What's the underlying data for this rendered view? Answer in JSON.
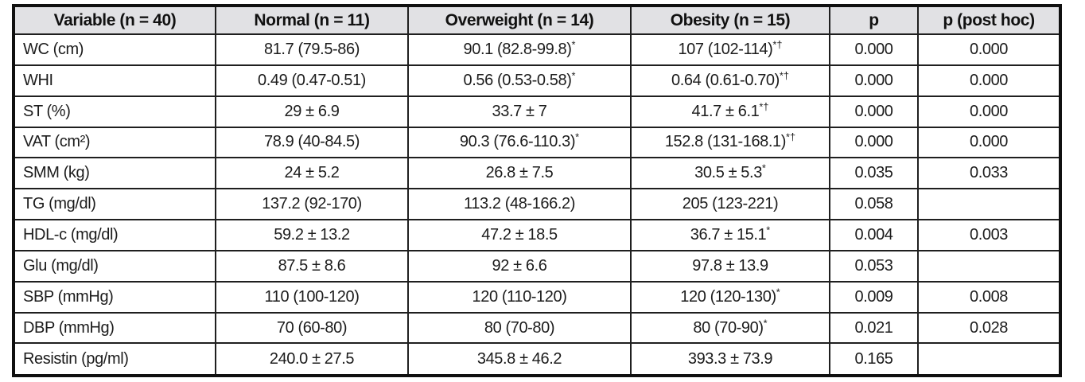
{
  "colors": {
    "header_bg": "#e1e1e4",
    "border": "#1f1f1f",
    "text": "#1c1c1c"
  },
  "table": {
    "headers": [
      "Variable (n = 40)",
      "Normal (n = 11)",
      "Overweight (n = 14)",
      "Obesity (n = 15)",
      "p",
      "p (post hoc)"
    ],
    "rows": [
      {
        "variable": "WC (cm)",
        "normal": {
          "text": "81.7 (79.5-86)",
          "sup": ""
        },
        "overweight": {
          "text": "90.1 (82.8-99.8)",
          "sup": "*"
        },
        "obesity": {
          "text": "107 (102-114)",
          "sup": "*†"
        },
        "p": "0.000",
        "p_post_hoc": "0.000"
      },
      {
        "variable": "WHI",
        "normal": {
          "text": "0.49 (0.47-0.51)",
          "sup": ""
        },
        "overweight": {
          "text": "0.56 (0.53-0.58)",
          "sup": "*"
        },
        "obesity": {
          "text": "0.64 (0.61-0.70)",
          "sup": "*†"
        },
        "p": "0.000",
        "p_post_hoc": "0.000"
      },
      {
        "variable": "ST (%)",
        "normal": {
          "text": "29 ± 6.9",
          "sup": ""
        },
        "overweight": {
          "text": "33.7 ± 7",
          "sup": ""
        },
        "obesity": {
          "text": "41.7 ± 6.1",
          "sup": "*†"
        },
        "p": "0.000",
        "p_post_hoc": "0.000"
      },
      {
        "variable": "VAT (cm²)",
        "normal": {
          "text": "78.9 (40-84.5)",
          "sup": ""
        },
        "overweight": {
          "text": "90.3 (76.6-110.3)",
          "sup": "*"
        },
        "obesity": {
          "text": "152.8 (131-168.1)",
          "sup": "*†"
        },
        "p": "0.000",
        "p_post_hoc": "0.000"
      },
      {
        "variable": "SMM (kg)",
        "normal": {
          "text": "24 ± 5.2",
          "sup": ""
        },
        "overweight": {
          "text": "26.8 ± 7.5",
          "sup": ""
        },
        "obesity": {
          "text": "30.5 ± 5.3",
          "sup": "*"
        },
        "p": "0.035",
        "p_post_hoc": "0.033"
      },
      {
        "variable": "TG (mg/dl)",
        "normal": {
          "text": "137.2 (92-170)",
          "sup": ""
        },
        "overweight": {
          "text": "113.2 (48-166.2)",
          "sup": ""
        },
        "obesity": {
          "text": "205 (123-221)",
          "sup": ""
        },
        "p": "0.058",
        "p_post_hoc": ""
      },
      {
        "variable": "HDL-c (mg/dl)",
        "normal": {
          "text": "59.2 ± 13.2",
          "sup": ""
        },
        "overweight": {
          "text": "47.2 ± 18.5",
          "sup": ""
        },
        "obesity": {
          "text": "36.7 ± 15.1",
          "sup": "*"
        },
        "p": "0.004",
        "p_post_hoc": "0.003"
      },
      {
        "variable": "Glu (mg/dl)",
        "normal": {
          "text": "87.5 ± 8.6",
          "sup": ""
        },
        "overweight": {
          "text": "92 ± 6.6",
          "sup": ""
        },
        "obesity": {
          "text": "97.8 ± 13.9",
          "sup": ""
        },
        "p": "0.053",
        "p_post_hoc": ""
      },
      {
        "variable": "SBP (mmHg)",
        "normal": {
          "text": "110 (100-120)",
          "sup": ""
        },
        "overweight": {
          "text": "120 (110-120)",
          "sup": ""
        },
        "obesity": {
          "text": "120 (120-130)",
          "sup": "*"
        },
        "p": "0.009",
        "p_post_hoc": "0.008"
      },
      {
        "variable": "DBP (mmHg)",
        "normal": {
          "text": "70 (60-80)",
          "sup": ""
        },
        "overweight": {
          "text": "80 (70-80)",
          "sup": ""
        },
        "obesity": {
          "text": "80 (70-90)",
          "sup": "*"
        },
        "p": "0.021",
        "p_post_hoc": "0.028"
      },
      {
        "variable": "Resistin (pg/ml)",
        "normal": {
          "text": "240.0 ± 27.5",
          "sup": ""
        },
        "overweight": {
          "text": "345.8 ± 46.2",
          "sup": ""
        },
        "obesity": {
          "text": "393.3 ± 73.9",
          "sup": ""
        },
        "p": "0.165",
        "p_post_hoc": ""
      }
    ]
  }
}
